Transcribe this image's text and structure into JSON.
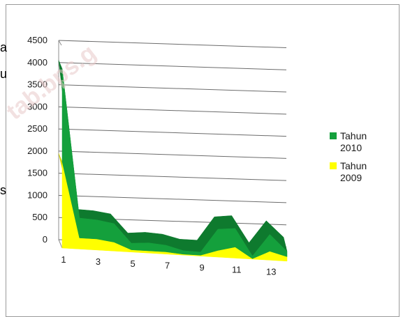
{
  "background_fragments": [
    "a",
    "u",
    "s"
  ],
  "watermark": "tab.bps.g",
  "chart_data": {
    "type": "area",
    "stacked": true,
    "three_d": true,
    "title": "",
    "xlabel": "",
    "ylabel": "",
    "ylim": [
      0,
      4500
    ],
    "y_ticks": [
      0,
      500,
      1000,
      1500,
      2000,
      2500,
      3000,
      3500,
      4000,
      4500
    ],
    "x": [
      1,
      2,
      3,
      4,
      5,
      6,
      7,
      8,
      9,
      10,
      11,
      12,
      13,
      14
    ],
    "x_tick_labels": [
      "1",
      "3",
      "5",
      "7",
      "9",
      "11",
      "13"
    ],
    "grid": true,
    "legend_position": "right",
    "series": [
      {
        "name": "Tahun 2009",
        "color": "#ffff00",
        "values": [
          1950,
          250,
          250,
          200,
          50,
          50,
          50,
          20,
          20,
          150,
          250,
          10,
          200,
          100
        ]
      },
      {
        "name": "Tahun 2010",
        "color": "#14a03c",
        "values": [
          2100,
          450,
          430,
          420,
          150,
          180,
          150,
          80,
          70,
          480,
          420,
          60,
          380,
          120
        ]
      }
    ],
    "legend": [
      {
        "line1": "Tahun",
        "line2": "2010",
        "color": "#14a03c"
      },
      {
        "line1": "Tahun",
        "line2": "2009",
        "color": "#ffff00"
      }
    ]
  }
}
